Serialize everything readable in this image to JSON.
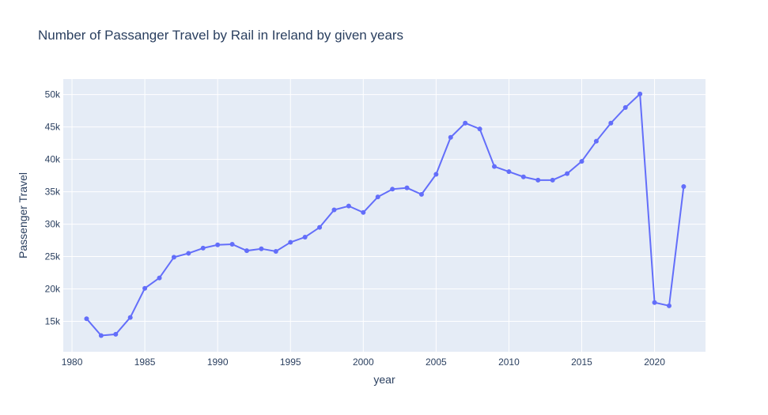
{
  "chart_data": {
    "type": "line",
    "title": "Number of Passanger Travel by Rail in Ireland by given years",
    "xlabel": "year",
    "ylabel": "Passenger Travel",
    "xlim": [
      1979.4,
      2023.5
    ],
    "ylim": [
      10300,
      52400
    ],
    "x_ticks": [
      1980,
      1985,
      1990,
      1995,
      2000,
      2005,
      2010,
      2015,
      2020
    ],
    "x_tick_labels": [
      "1980",
      "1985",
      "1990",
      "1995",
      "2000",
      "2005",
      "2010",
      "2015",
      "2020"
    ],
    "y_ticks": [
      15000,
      20000,
      25000,
      30000,
      35000,
      40000,
      45000,
      50000
    ],
    "y_tick_labels": [
      "15k",
      "20k",
      "25k",
      "30k",
      "35k",
      "40k",
      "45k",
      "50k"
    ],
    "grid": true,
    "legend": "none",
    "colors": {
      "plot_background": "#e5ecf6",
      "grid": "#ffffff",
      "line": "#636efa"
    },
    "series": [
      {
        "x": [
          1981,
          1982,
          1983,
          1984,
          1985,
          1986,
          1987,
          1988,
          1989,
          1990,
          1991,
          1992,
          1993,
          1994,
          1995,
          1996,
          1997,
          1998,
          1999,
          2000,
          2001,
          2002,
          2003,
          2004,
          2005,
          2006,
          2007,
          2008,
          2009,
          2010,
          2011,
          2012,
          2013,
          2014,
          2015,
          2016,
          2017,
          2018,
          2019,
          2020,
          2021,
          2022
        ],
        "values": [
          15400,
          12800,
          13000,
          15600,
          20100,
          21700,
          24900,
          25500,
          26300,
          26800,
          26900,
          25900,
          26200,
          25800,
          27200,
          28000,
          29500,
          32200,
          32800,
          31800,
          34200,
          35400,
          35600,
          34600,
          37700,
          43400,
          45600,
          44700,
          38900,
          38100,
          37300,
          36800,
          36800,
          37800,
          39700,
          42800,
          45600,
          48000,
          50100,
          17900,
          17400,
          35800
        ]
      }
    ]
  }
}
